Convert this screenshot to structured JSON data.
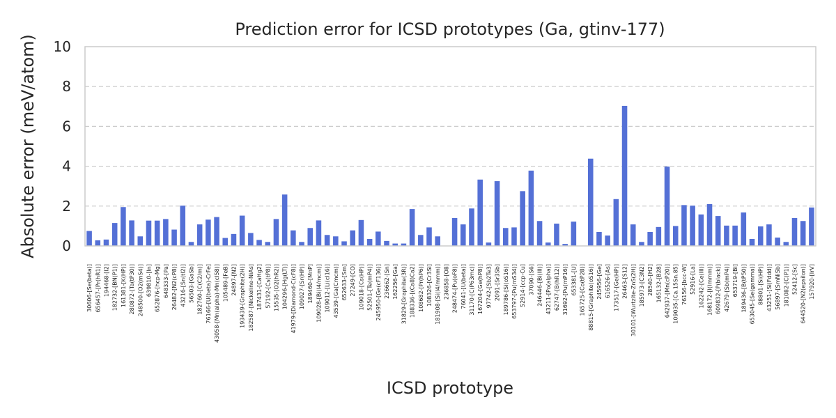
{
  "chart_data": {
    "type": "bar",
    "title": "Prediction error for ICSD prototypes (Ga, gtinv-177)",
    "xlabel": "ICSD prototype",
    "ylabel": "Absolute error (meV/atom)",
    "ylim": [
      0,
      10
    ],
    "yticks": [
      0,
      2,
      4,
      6,
      8,
      10
    ],
    "grid": "y-dashed",
    "bar_color": "#5470d6",
    "categories": [
      "30606-[Se(beta)]",
      "656457-[Pr(hR1)]",
      "194468-[I2]",
      "182732-[BN(P1)]",
      "161381-[K(HP)]",
      "280872-[Ta(tP30)]",
      "248500-[O2(mS4)]",
      "639810-[In]",
      "652876-[hcp-Mg]",
      "648333-[Pa]",
      "26482-[N2(cP8)]",
      "43216-[Sn(tI2)]",
      "56503-[GaSb]",
      "182760-[C(C2/m)]",
      "76166-[U(beta)-CrFe]",
      "43058-[Mn(alpha)-Mn(cI58)]",
      "105489-[FeB]",
      "24897-[N2]",
      "193439-[Graphite(2H)]",
      "182587-[Nickeline-NiAs]",
      "187431-[CaHg2]",
      "57192-[Cs(tP8)]",
      "15535-[O2(hR2)]",
      "104296-[Hg(LT)]",
      "41979-[Diamond-C(cF8)]",
      "109027-[Sr(HP)]",
      "189460-[MnP]",
      "109028-[Bi(I4/mcm)]",
      "109012-[Li(cI16)]",
      "43539-[Ga(Cmcm)]",
      "652633-[Sm]",
      "27249-[CO]",
      "109018-[Cs(HP)]",
      "52501-[Te(mP4)]",
      "245950-[Ge(cF136)]",
      "236662-[Sn]",
      "162256-[Ga]",
      "31829-[Graphite(3R)]",
      "188336-[(Ca8)Ca2]",
      "108682-[Pr(hP6)]",
      "108326-[Cr3Si]",
      "181908-[Si(I4/mmm)]",
      "236858-[O8]",
      "248474-[Pu(oF8)]",
      "76041-[U(beta)]",
      "31170-[C(P63mc)]",
      "167204-[Ge(hP8)]",
      "97742-[Sb2Te3]",
      "2091-[Sr3Sb]",
      "189786-[Si(oS16)]",
      "653797-[Pu(mS34)]",
      "52914-[ccp-Cu]",
      "37090-[S6]",
      "246446-[Bi(III)]",
      "43211-[Po(alpha)]",
      "62747-[B(hR12)]",
      "31692-[Pu(mP16)]",
      "653381-[U]",
      "165725-[Co(tP28)]",
      "88815-[Graphite(oS16)]",
      "245956-[Ge]",
      "616526-[As]",
      "173517-[Ge(HP)]",
      "26463-[S12]",
      "30101-[Wurtzite-ZnS(2H)]",
      "185973-[C3N2]",
      "28540-[H2]",
      "165132-[B28]",
      "642937-[Mn(cP20)]",
      "109035-[Ca.15Sn.85]",
      "76156-[bcc-W]",
      "52916-[La]",
      "162242-[Ce(III)]",
      "168172-[I(Immm)]",
      "609832-[P(black)]",
      "42679-[Sb(mP4)]",
      "653719-[Bi]",
      "189436-[B(tP50)]",
      "653045-[Se(gamma)]",
      "88801-[Si(HP)]",
      "43251-[Si(Fddd)]",
      "56897-[SmNiSb]",
      "181082-[C(P1)]",
      "52412-[Sc]",
      "644520-[N2(epsilon)]",
      "157920-[IrV]"
    ],
    "values": [
      0.75,
      0.28,
      0.32,
      1.15,
      1.95,
      1.28,
      0.48,
      1.27,
      1.27,
      1.35,
      0.82,
      2.02,
      0.2,
      1.08,
      1.32,
      1.45,
      0.4,
      0.6,
      1.52,
      0.65,
      0.3,
      0.2,
      1.35,
      2.58,
      0.78,
      0.2,
      0.9,
      1.28,
      0.55,
      0.48,
      0.23,
      0.78,
      1.3,
      0.35,
      0.72,
      0.25,
      0.12,
      0.12,
      1.85,
      0.55,
      0.93,
      0.48,
      0.0,
      1.4,
      1.08,
      1.88,
      3.33,
      0.17,
      3.25,
      0.9,
      0.93,
      2.75,
      3.78,
      1.25,
      0.17,
      1.12,
      0.1,
      1.22,
      0.0,
      4.38,
      0.7,
      0.52,
      2.35,
      7.03,
      1.08,
      0.2,
      0.7,
      0.95,
      3.98,
      1.0,
      2.05,
      2.02,
      1.58,
      2.1,
      1.5,
      1.02,
      1.02,
      1.68,
      0.35,
      0.98,
      1.08,
      0.42,
      0.2,
      1.4,
      1.25,
      1.93
    ]
  }
}
